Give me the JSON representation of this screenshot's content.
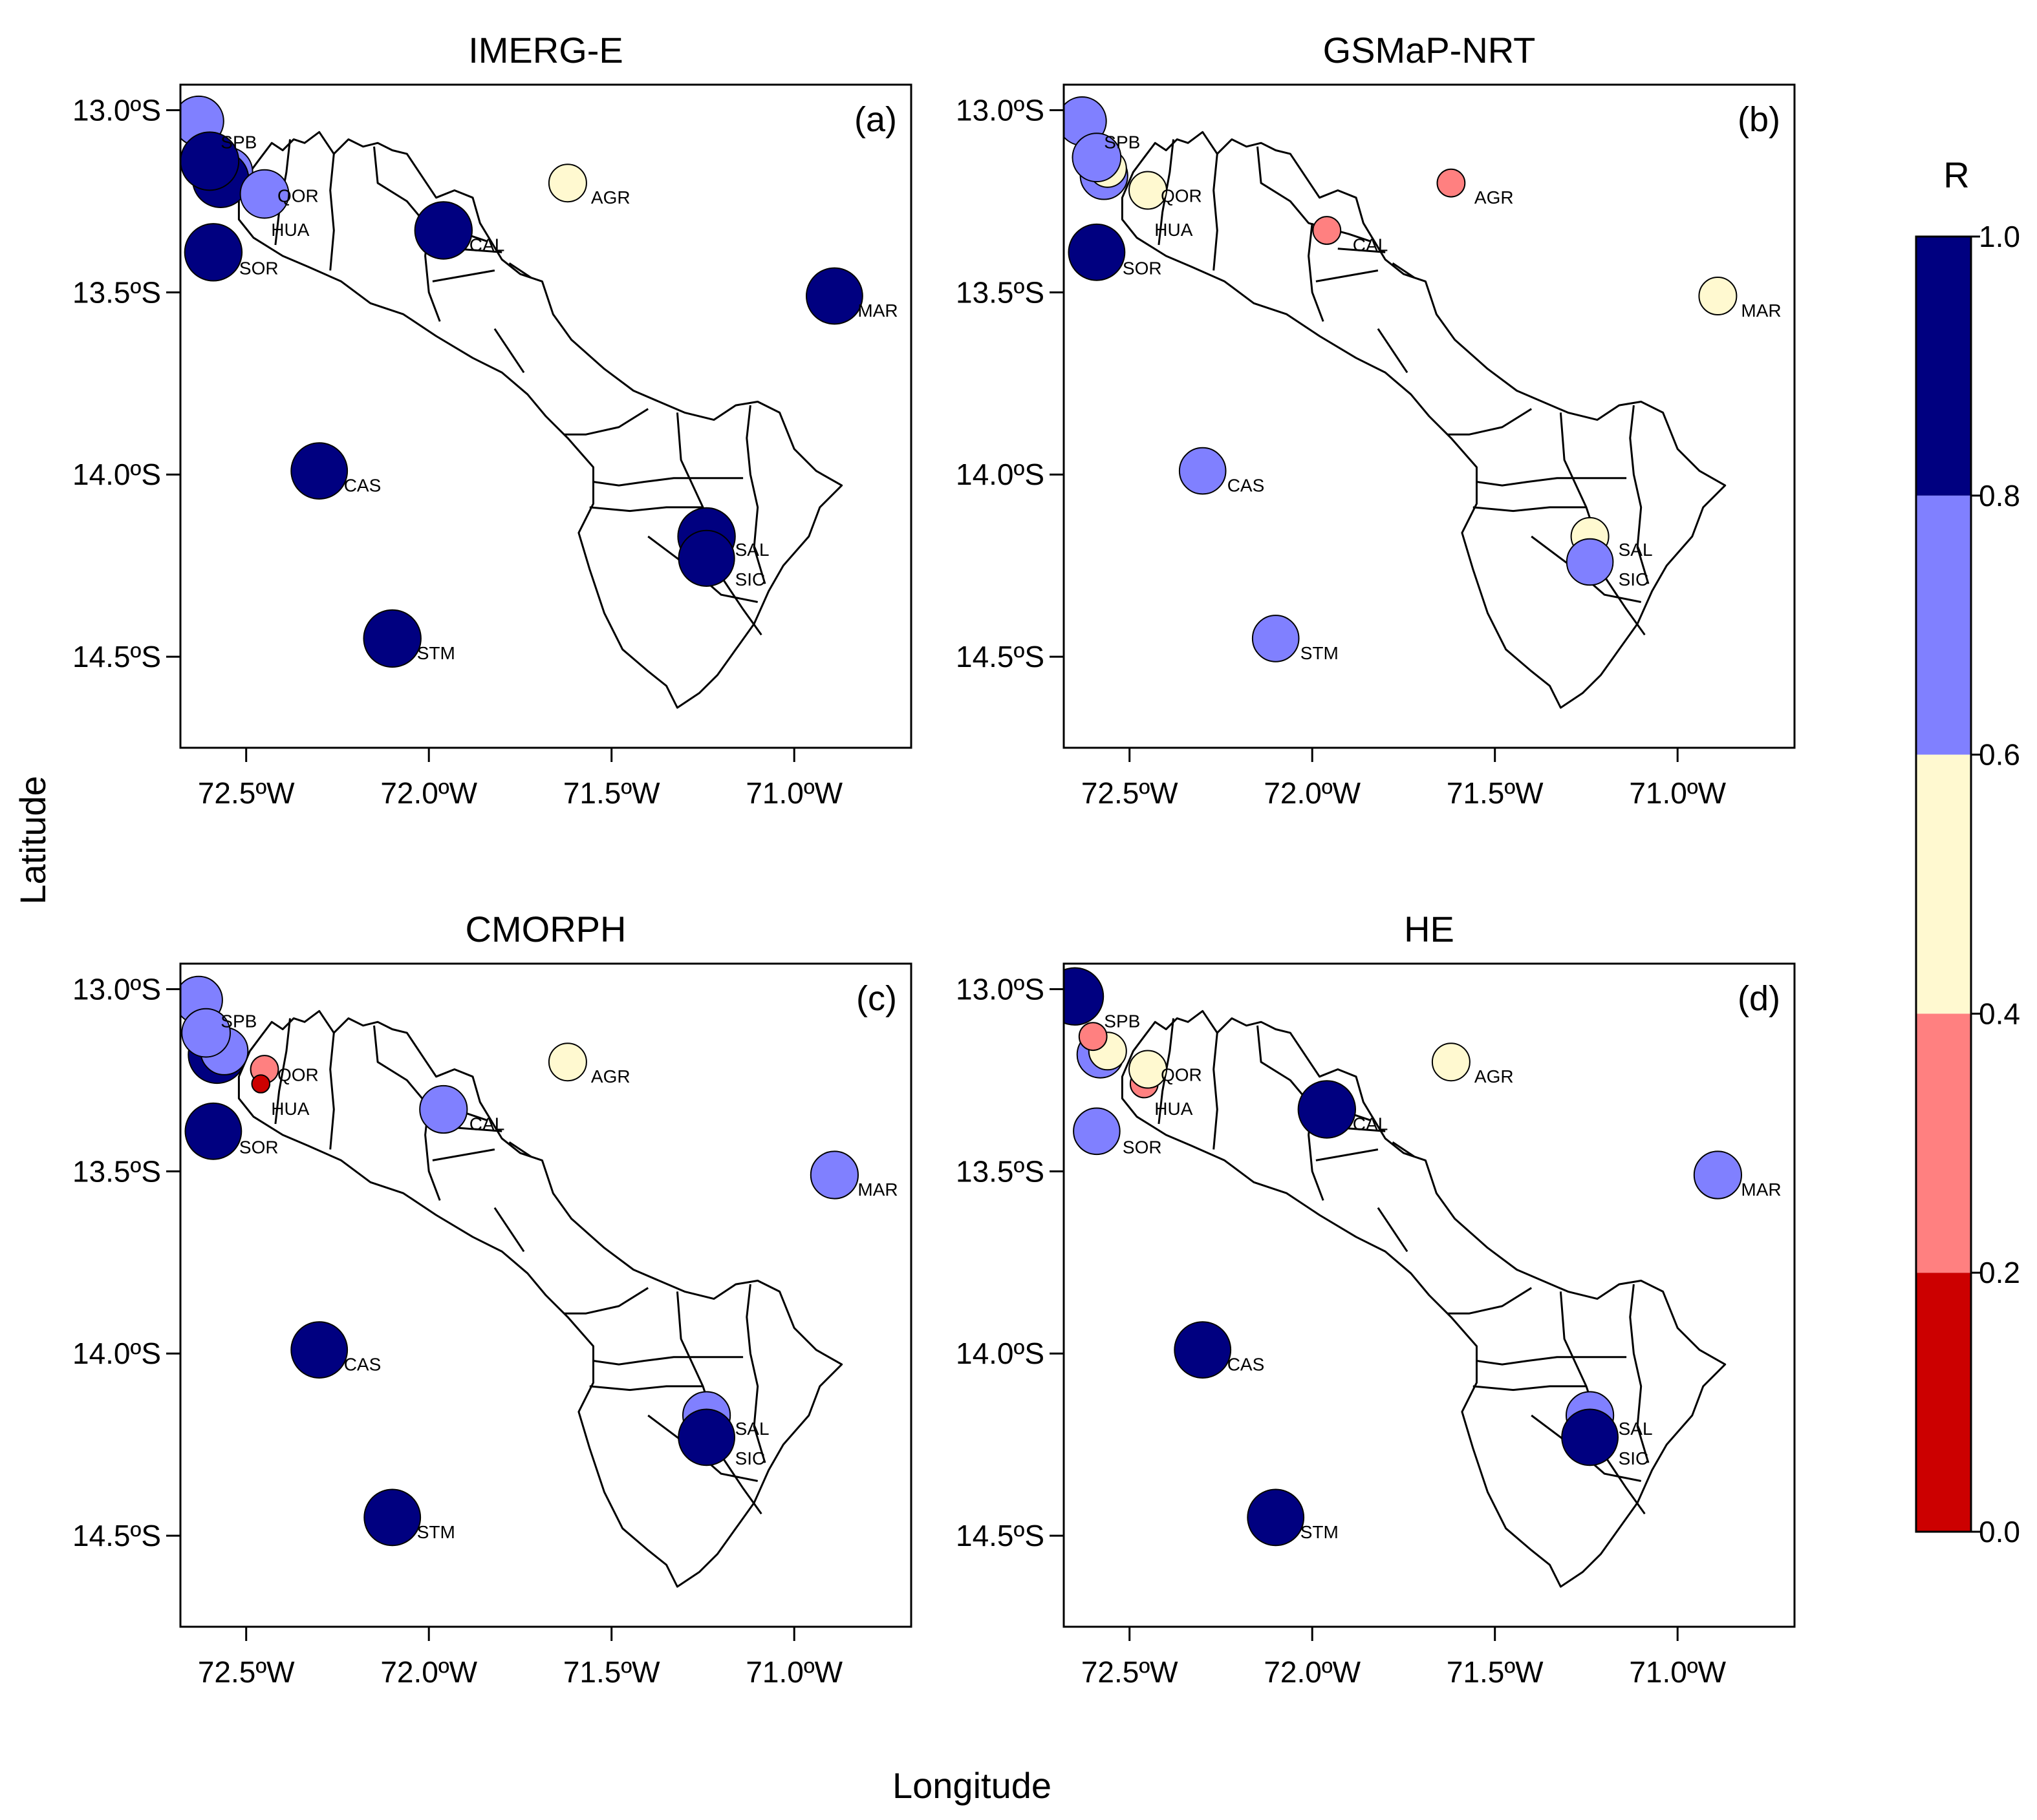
{
  "figure": {
    "x_axis_title": "Longitude",
    "y_axis_title": "Latitude",
    "colorbar_title": "R"
  },
  "chart_data": {
    "type": "scatter",
    "map_extent": {
      "lon": [
        -72.68,
        -70.68
      ],
      "lat": [
        -12.93,
        -14.75
      ]
    },
    "lon_ticks": [
      {
        "value": -72.5,
        "label": "72.5ºW"
      },
      {
        "value": -72.0,
        "label": "72.0ºW"
      },
      {
        "value": -71.5,
        "label": "71.5ºW"
      },
      {
        "value": -71.0,
        "label": "71.0ºW"
      }
    ],
    "lat_ticks": [
      {
        "value": -13.0,
        "label": "13.0ºS"
      },
      {
        "value": -13.5,
        "label": "13.5ºS"
      },
      {
        "value": -14.0,
        "label": "14.0ºS"
      },
      {
        "value": -14.5,
        "label": "14.5ºS"
      }
    ],
    "stations": [
      {
        "code": "SPB",
        "lon": -72.63,
        "lat": -13.03
      },
      {
        "code": "QOR",
        "lon": -72.45,
        "lat": -13.22
      },
      {
        "code": "HUA",
        "lon": -72.46,
        "lat": -13.26
      },
      {
        "code": "SOR",
        "lon": -72.59,
        "lat": -13.39
      },
      {
        "code": "AGR",
        "lon": -71.62,
        "lat": -13.2
      },
      {
        "code": "CAL",
        "lon": -71.96,
        "lat": -13.33
      },
      {
        "code": "MAR",
        "lon": -70.89,
        "lat": -13.51
      },
      {
        "code": "CAS",
        "lon": -72.3,
        "lat": -13.99
      },
      {
        "code": "SAL",
        "lon": -71.24,
        "lat": -14.17
      },
      {
        "code": "SIC",
        "lon": -71.24,
        "lat": -14.23
      },
      {
        "code": "STM",
        "lon": -72.1,
        "lat": -14.45
      }
    ],
    "colorbar": {
      "breaks": [
        0.0,
        0.2,
        0.4,
        0.6,
        0.8,
        1.0
      ],
      "labels": [
        "0.0",
        "0.2",
        "0.4",
        "0.6",
        "0.8",
        "1.0"
      ],
      "colors": [
        "#cc0000",
        "#ff8080",
        "#fff9d0",
        "#8080ff",
        "#000080"
      ]
    },
    "panels": [
      {
        "title": "IMERG-E",
        "tag": "(a)",
        "points": [
          {
            "lon": -72.63,
            "lat": -13.03,
            "r": 0.75
          },
          {
            "lon": -72.55,
            "lat": -13.17,
            "r": 0.74
          },
          {
            "lon": -72.57,
            "lat": -13.19,
            "r": 0.88
          },
          {
            "lon": -72.6,
            "lat": -13.14,
            "r": 0.92
          },
          {
            "lon": -72.45,
            "lat": -13.23,
            "r": 0.72
          },
          {
            "lon": -72.59,
            "lat": -13.39,
            "r": 0.9
          },
          {
            "lon": -71.62,
            "lat": -13.2,
            "r": 0.5
          },
          {
            "lon": -71.96,
            "lat": -13.33,
            "r": 0.9
          },
          {
            "lon": -70.89,
            "lat": -13.51,
            "r": 0.88
          },
          {
            "lon": -72.3,
            "lat": -13.99,
            "r": 0.88
          },
          {
            "lon": -71.24,
            "lat": -14.17,
            "r": 0.9
          },
          {
            "lon": -71.24,
            "lat": -14.23,
            "r": 0.87
          },
          {
            "lon": -72.1,
            "lat": -14.45,
            "r": 0.9
          }
        ]
      },
      {
        "title": "GSMaP-NRT",
        "tag": "(b)",
        "points": [
          {
            "lon": -72.63,
            "lat": -13.03,
            "r": 0.72
          },
          {
            "lon": -72.57,
            "lat": -13.18,
            "r": 0.7
          },
          {
            "lon": -72.56,
            "lat": -13.16,
            "r": 0.5
          },
          {
            "lon": -72.59,
            "lat": -13.13,
            "r": 0.72
          },
          {
            "lon": -72.45,
            "lat": -13.22,
            "r": 0.5
          },
          {
            "lon": -72.59,
            "lat": -13.39,
            "r": 0.88
          },
          {
            "lon": -71.62,
            "lat": -13.2,
            "r": 0.3
          },
          {
            "lon": -71.96,
            "lat": -13.33,
            "r": 0.3
          },
          {
            "lon": -70.89,
            "lat": -13.51,
            "r": 0.5
          },
          {
            "lon": -72.3,
            "lat": -13.99,
            "r": 0.68
          },
          {
            "lon": -71.24,
            "lat": -14.17,
            "r": 0.5
          },
          {
            "lon": -71.24,
            "lat": -14.24,
            "r": 0.68
          },
          {
            "lon": -72.1,
            "lat": -14.45,
            "r": 0.68
          }
        ]
      },
      {
        "title": "CMORPH",
        "tag": "(c)",
        "points": [
          {
            "lon": -72.63,
            "lat": -13.03,
            "r": 0.7
          },
          {
            "lon": -72.58,
            "lat": -13.18,
            "r": 0.9
          },
          {
            "lon": -72.56,
            "lat": -13.17,
            "r": 0.7
          },
          {
            "lon": -72.61,
            "lat": -13.12,
            "r": 0.72
          },
          {
            "lon": -72.45,
            "lat": -13.22,
            "r": 0.3
          },
          {
            "lon": -72.46,
            "lat": -13.26,
            "r": 0.1
          },
          {
            "lon": -72.59,
            "lat": -13.39,
            "r": 0.88
          },
          {
            "lon": -71.62,
            "lat": -13.2,
            "r": 0.5
          },
          {
            "lon": -71.96,
            "lat": -13.33,
            "r": 0.7
          },
          {
            "lon": -70.89,
            "lat": -13.51,
            "r": 0.7
          },
          {
            "lon": -72.3,
            "lat": -13.99,
            "r": 0.88
          },
          {
            "lon": -71.24,
            "lat": -14.17,
            "r": 0.7
          },
          {
            "lon": -71.24,
            "lat": -14.23,
            "r": 0.88
          },
          {
            "lon": -72.1,
            "lat": -14.45,
            "r": 0.88
          }
        ]
      },
      {
        "title": "HE",
        "tag": "(d)",
        "points": [
          {
            "lon": -72.65,
            "lat": -13.02,
            "r": 0.9
          },
          {
            "lon": -72.58,
            "lat": -13.18,
            "r": 0.68
          },
          {
            "lon": -72.56,
            "lat": -13.17,
            "r": 0.5
          },
          {
            "lon": -72.6,
            "lat": -13.13,
            "r": 0.3
          },
          {
            "lon": -72.46,
            "lat": -13.26,
            "r": 0.3
          },
          {
            "lon": -72.45,
            "lat": -13.22,
            "r": 0.5
          },
          {
            "lon": -72.59,
            "lat": -13.39,
            "r": 0.68
          },
          {
            "lon": -71.62,
            "lat": -13.2,
            "r": 0.5
          },
          {
            "lon": -71.96,
            "lat": -13.33,
            "r": 0.9
          },
          {
            "lon": -70.89,
            "lat": -13.51,
            "r": 0.7
          },
          {
            "lon": -72.3,
            "lat": -13.99,
            "r": 0.88
          },
          {
            "lon": -71.24,
            "lat": -14.17,
            "r": 0.7
          },
          {
            "lon": -71.24,
            "lat": -14.23,
            "r": 0.88
          },
          {
            "lon": -72.1,
            "lat": -14.45,
            "r": 0.88
          }
        ]
      }
    ]
  }
}
